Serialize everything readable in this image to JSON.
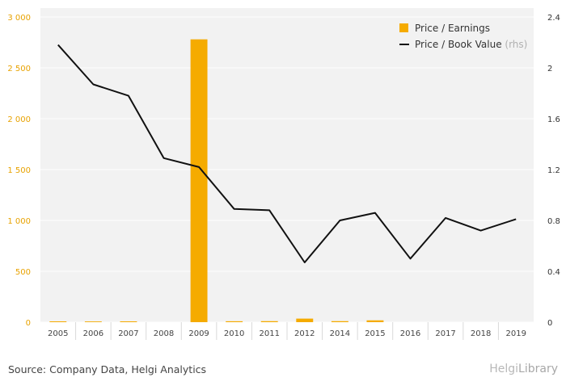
{
  "chart_data": {
    "type": "bar",
    "categories": [
      "2005",
      "2006",
      "2007",
      "2008",
      "2009",
      "2010",
      "2011",
      "2012",
      "2014",
      "2015",
      "2016",
      "2017",
      "2018",
      "2019"
    ],
    "series": [
      {
        "name": "Price / Earnings",
        "type": "bar",
        "axis": "left",
        "color": "#f5ab00",
        "values": [
          8,
          7,
          8,
          null,
          2780,
          9,
          10,
          35,
          10,
          18,
          null,
          null,
          null,
          null
        ]
      },
      {
        "name": "Price / Book Value",
        "name_suffix": "(rhs)",
        "type": "line",
        "axis": "right",
        "color": "#111111",
        "values": [
          2.18,
          1.87,
          1.78,
          1.29,
          1.22,
          0.89,
          0.88,
          0.47,
          0.8,
          0.86,
          0.5,
          0.82,
          0.72,
          0.81
        ]
      }
    ],
    "yleft": {
      "ticks": [
        0,
        500,
        1000,
        1500,
        2000,
        2500,
        3000
      ],
      "tick_labels": [
        "0",
        "500",
        "1 000",
        "1 500",
        "2 000",
        "2 500",
        "3 000"
      ],
      "ylim": [
        0,
        3000
      ],
      "color": "#e8a200"
    },
    "yright": {
      "ticks": [
        0,
        0.4,
        0.8,
        1.2,
        1.6,
        2,
        2.4
      ],
      "tick_labels": [
        "0",
        "0.4",
        "0.8",
        "1.2",
        "1.6",
        "2",
        "2.4"
      ],
      "ylim": [
        0,
        2.4
      ]
    },
    "grid": true,
    "legend_position": "top-right"
  },
  "footer": {
    "source": "Source: Company Data, Helgi Analytics",
    "logo_prefix": "Helgi",
    "logo_suffix": "Library"
  }
}
